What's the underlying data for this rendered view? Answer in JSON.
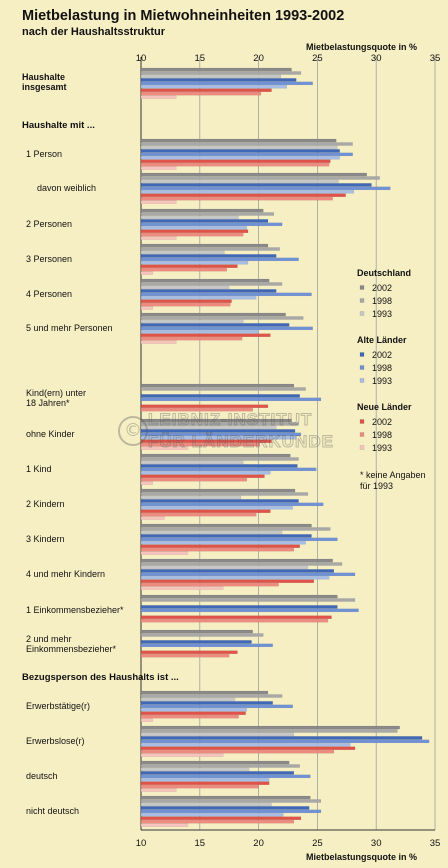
{
  "title": "Mietbelastung in Mietwohneinheiten 1993-2002",
  "subtitle": "nach der Haushaltsstruktur",
  "watermark": "LEIBNIZ-INSTITUT FÜR LÄNDERKUNDE",
  "chart_data": {
    "type": "bar",
    "orientation": "horizontal",
    "xlabel": "Mietbelastungsquote in %",
    "xlim": [
      10,
      35
    ],
    "xticks": [
      10,
      15,
      20,
      25,
      30,
      35
    ],
    "grid": true,
    "groups": [
      {
        "name": "Deutschland",
        "series": [
          "2002",
          "1998",
          "1993"
        ],
        "colors": [
          "#8a8a8a",
          "#a8a8a8",
          "#c8c8c8"
        ]
      },
      {
        "name": "Alte Länder",
        "series": [
          "2002",
          "1998",
          "1993"
        ],
        "colors": [
          "#3f68b8",
          "#6f92d6",
          "#a6bde8"
        ]
      },
      {
        "name": "Neue Länder",
        "series": [
          "2002",
          "1998",
          "1993"
        ],
        "colors": [
          "#e0534a",
          "#ee8a80",
          "#f7c4bd"
        ]
      }
    ],
    "legend_footnote": "*  keine Angaben\n   für 1993",
    "rows": [
      {
        "label": "Haushalte\ninsgesamt",
        "values": [
          22.8,
          23.6,
          21.9,
          23.2,
          24.6,
          22.4,
          21.1,
          20.2,
          13.0
        ]
      },
      {
        "label": "Haushalte mit ...",
        "header": true
      },
      {
        "label": "1 Person",
        "values": [
          26.6,
          28.0,
          26.7,
          26.9,
          28.0,
          26.9,
          26.1,
          26.0,
          13.0
        ]
      },
      {
        "label": "davon weiblich",
        "values": [
          29.2,
          30.3,
          26.8,
          29.6,
          31.2,
          28.1,
          27.4,
          26.3,
          13.0
        ]
      },
      {
        "label": "2 Personen",
        "values": [
          20.4,
          21.3,
          18.3,
          20.8,
          22.0,
          19.0,
          19.1,
          18.7,
          13.0
        ]
      },
      {
        "label": "3 Personen",
        "values": [
          20.8,
          21.8,
          17.1,
          21.5,
          23.4,
          19.1,
          18.2,
          17.3,
          11.0
        ]
      },
      {
        "label": "4 Personen",
        "values": [
          20.9,
          22.0,
          17.5,
          21.5,
          24.5,
          19.8,
          17.7,
          17.6,
          11.0
        ]
      },
      {
        "label": "5 und mehr Personen",
        "values": [
          22.3,
          23.8,
          18.7,
          22.6,
          24.6,
          20.0,
          21.0,
          18.6,
          13.0
        ]
      },
      {
        "label": "Kind(ern) unter\n18 Jahren*",
        "values": [
          23.0,
          24.0,
          null,
          23.5,
          25.3,
          null,
          20.8,
          19.5,
          null
        ]
      },
      {
        "label": "ohne Kinder",
        "values": [
          22.8,
          23.4,
          21.5,
          23.1,
          23.6,
          23.2,
          21.1,
          20.1,
          14.0
        ]
      },
      {
        "label": "1 Kind",
        "values": [
          22.7,
          23.4,
          18.7,
          23.3,
          24.9,
          21.0,
          20.5,
          19.0,
          11.0
        ]
      },
      {
        "label": "2 Kindern",
        "values": [
          23.1,
          24.2,
          18.5,
          23.4,
          25.5,
          22.9,
          21.0,
          19.8,
          12.0
        ]
      },
      {
        "label": "3 Kindern",
        "values": [
          24.5,
          26.1,
          22.0,
          24.5,
          26.7,
          24.0,
          23.5,
          23.0,
          14.0
        ]
      },
      {
        "label": "4 und mehr Kindern",
        "values": [
          26.3,
          27.1,
          24.2,
          26.4,
          28.2,
          26.0,
          24.7,
          21.7,
          17.0
        ]
      },
      {
        "label": "1 Einkommensbezieher*",
        "values": [
          26.7,
          28.2,
          null,
          26.7,
          28.5,
          null,
          26.2,
          25.9,
          null
        ]
      },
      {
        "label": "2 und mehr\nEinkommensbezieher*",
        "values": [
          19.5,
          20.4,
          null,
          19.4,
          21.2,
          null,
          18.2,
          17.5,
          null
        ]
      },
      {
        "label": "Bezugsperson des Haushalts ist ...",
        "header": true
      },
      {
        "label": "Erwerbstätige(r)",
        "values": [
          20.8,
          22.0,
          18.0,
          21.2,
          22.9,
          19.0,
          18.9,
          18.3,
          11.0
        ]
      },
      {
        "label": "Erwerbslose(r)",
        "values": [
          32.0,
          31.8,
          23.0,
          33.9,
          34.5,
          27.8,
          28.2,
          26.4,
          17.0
        ]
      },
      {
        "label": "deutsch",
        "values": [
          22.6,
          23.5,
          19.2,
          23.0,
          24.4,
          20.9,
          20.9,
          20.0,
          13.0
        ]
      },
      {
        "label": "nicht deutsch",
        "values": [
          24.4,
          25.3,
          21.1,
          24.3,
          25.3,
          22.1,
          23.6,
          23.0,
          14.0
        ]
      }
    ]
  }
}
